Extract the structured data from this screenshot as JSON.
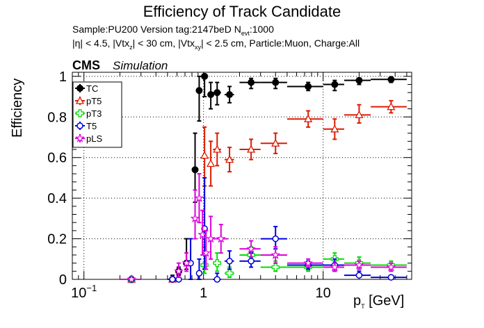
{
  "header": {
    "title": "Efficiency of Track Candidate",
    "sample_line_a": "Sample:PU200   Version tag:2147beD  N",
    "sample_line_a_sub": "evt",
    "sample_line_a_tail": ":1000",
    "cuts_a": "|η| < 4.5, |Vtx",
    "cuts_sub1": "z",
    "cuts_b": "| < 30 cm, |Vtx",
    "cuts_sub2": "xy",
    "cuts_c": "| < 2.5 cm, Particle:Muon, Charge:All",
    "cms": "CMS",
    "simulation": "Simulation"
  },
  "chart_data": {
    "type": "scatter",
    "title": "Efficiency of Track Candidate",
    "xlabel_main": "p",
    "xlabel_sub": "T",
    "xlabel_unit": " [GeV]",
    "ylabel": "Efficiency",
    "x_scale": "log",
    "xlim": [
      0.08,
      55
    ],
    "ylim": [
      0,
      1.02
    ],
    "x_tick_labels": [
      {
        "value": 0.1,
        "base": "10",
        "exp": "−1"
      },
      {
        "value": 1,
        "base": "1",
        "exp": ""
      },
      {
        "value": 10,
        "base": "10",
        "exp": ""
      }
    ],
    "y_ticks": [
      0,
      0.2,
      0.4,
      0.6,
      0.8,
      1
    ],
    "y_tick_labels": [
      "0",
      "0.2",
      "0.4",
      "0.6",
      "0.8",
      "1"
    ],
    "grid": true,
    "legend_position": "top-left",
    "series": [
      {
        "name": "TC",
        "color": "#000000",
        "marker": "filled-circle",
        "points": [
          {
            "x": 0.25,
            "xlo": 0.2,
            "xhi": 0.3,
            "y": 0,
            "ylo": 0,
            "yhi": 0
          },
          {
            "x": 0.55,
            "xlo": 0.5,
            "xhi": 0.6,
            "y": 0,
            "ylo": 0,
            "yhi": 0.02
          },
          {
            "x": 0.62,
            "xlo": 0.6,
            "xhi": 0.65,
            "y": 0.04,
            "ylo": 0.02,
            "yhi": 0.06
          },
          {
            "x": 0.72,
            "xlo": 0.7,
            "xhi": 0.75,
            "y": 0.08,
            "ylo": 0.05,
            "yhi": 0.2
          },
          {
            "x": 0.85,
            "xlo": 0.82,
            "xhi": 0.88,
            "y": 0.54,
            "ylo": 0.38,
            "yhi": 0.72
          },
          {
            "x": 0.92,
            "xlo": 0.9,
            "xhi": 0.95,
            "y": 0.93,
            "ylo": 0.78,
            "yhi": 1.0
          },
          {
            "x": 1.02,
            "xlo": 1.0,
            "xhi": 1.05,
            "y": 1.0,
            "ylo": 0.9,
            "yhi": 1.0
          },
          {
            "x": 1.15,
            "xlo": 1.1,
            "xhi": 1.2,
            "y": 0.91,
            "ylo": 0.84,
            "yhi": 0.97
          },
          {
            "x": 1.3,
            "xlo": 1.2,
            "xhi": 1.4,
            "y": 0.92,
            "ylo": 0.86,
            "yhi": 0.97
          },
          {
            "x": 1.65,
            "xlo": 1.5,
            "xhi": 1.8,
            "y": 0.91,
            "ylo": 0.87,
            "yhi": 0.95
          },
          {
            "x": 2.5,
            "xlo": 2.0,
            "xhi": 3.0,
            "y": 0.97,
            "ylo": 0.94,
            "yhi": 0.99
          },
          {
            "x": 4.0,
            "xlo": 3.0,
            "xhi": 5.0,
            "y": 0.97,
            "ylo": 0.94,
            "yhi": 0.99
          },
          {
            "x": 7.5,
            "xlo": 5.0,
            "xhi": 10.0,
            "y": 0.95,
            "ylo": 0.93,
            "yhi": 0.97
          },
          {
            "x": 12.5,
            "xlo": 10.0,
            "xhi": 15.0,
            "y": 0.96,
            "ylo": 0.93,
            "yhi": 0.98
          },
          {
            "x": 20.0,
            "xlo": 15.0,
            "xhi": 25.0,
            "y": 0.98,
            "ylo": 0.96,
            "yhi": 0.99
          },
          {
            "x": 37.0,
            "xlo": 25.0,
            "xhi": 50.0,
            "y": 0.985,
            "ylo": 0.97,
            "yhi": 0.995
          }
        ]
      },
      {
        "name": "pT5",
        "color": "#dd1a00",
        "marker": "open-triangle",
        "points": [
          {
            "x": 0.25,
            "xlo": 0.2,
            "xhi": 0.3,
            "y": 0,
            "ylo": 0,
            "yhi": 0
          },
          {
            "x": 0.55,
            "xlo": 0.5,
            "xhi": 0.6,
            "y": 0,
            "ylo": 0,
            "yhi": 0
          },
          {
            "x": 1.02,
            "xlo": 1.0,
            "xhi": 1.05,
            "y": 0.61,
            "ylo": 0.46,
            "yhi": 0.75
          },
          {
            "x": 1.15,
            "xlo": 1.1,
            "xhi": 1.2,
            "y": 0.57,
            "ylo": 0.46,
            "yhi": 0.68
          },
          {
            "x": 1.3,
            "xlo": 1.2,
            "xhi": 1.4,
            "y": 0.64,
            "ylo": 0.56,
            "yhi": 0.72
          },
          {
            "x": 1.65,
            "xlo": 1.5,
            "xhi": 1.8,
            "y": 0.59,
            "ylo": 0.53,
            "yhi": 0.65
          },
          {
            "x": 2.5,
            "xlo": 2.0,
            "xhi": 3.0,
            "y": 0.64,
            "ylo": 0.59,
            "yhi": 0.69
          },
          {
            "x": 4.0,
            "xlo": 3.0,
            "xhi": 5.0,
            "y": 0.67,
            "ylo": 0.62,
            "yhi": 0.72
          },
          {
            "x": 7.5,
            "xlo": 5.0,
            "xhi": 10.0,
            "y": 0.79,
            "ylo": 0.75,
            "yhi": 0.83
          },
          {
            "x": 12.5,
            "xlo": 10.0,
            "xhi": 15.0,
            "y": 0.74,
            "ylo": 0.69,
            "yhi": 0.79
          },
          {
            "x": 20.0,
            "xlo": 15.0,
            "xhi": 25.0,
            "y": 0.81,
            "ylo": 0.77,
            "yhi": 0.86
          },
          {
            "x": 37.0,
            "xlo": 25.0,
            "xhi": 50.0,
            "y": 0.85,
            "ylo": 0.82,
            "yhi": 0.88
          }
        ]
      },
      {
        "name": "pT3",
        "color": "#00dd00",
        "marker": "open-cross",
        "points": [
          {
            "x": 0.25,
            "xlo": 0.2,
            "xhi": 0.3,
            "y": 0,
            "ylo": 0,
            "yhi": 0
          },
          {
            "x": 1.02,
            "xlo": 1.0,
            "xhi": 1.05,
            "y": 0.07,
            "ylo": 0.03,
            "yhi": 0.16
          },
          {
            "x": 1.3,
            "xlo": 1.2,
            "xhi": 1.4,
            "y": 0.08,
            "ylo": 0.04,
            "yhi": 0.13
          },
          {
            "x": 1.65,
            "xlo": 1.5,
            "xhi": 1.8,
            "y": 0.03,
            "ylo": 0.01,
            "yhi": 0.06
          },
          {
            "x": 2.5,
            "xlo": 2.0,
            "xhi": 3.0,
            "y": 0.12,
            "ylo": 0.08,
            "yhi": 0.16
          },
          {
            "x": 4.0,
            "xlo": 3.0,
            "xhi": 5.0,
            "y": 0.06,
            "ylo": 0.04,
            "yhi": 0.09
          },
          {
            "x": 7.5,
            "xlo": 5.0,
            "xhi": 10.0,
            "y": 0.06,
            "ylo": 0.04,
            "yhi": 0.08
          },
          {
            "x": 12.5,
            "xlo": 10.0,
            "xhi": 15.0,
            "y": 0.1,
            "ylo": 0.07,
            "yhi": 0.13
          },
          {
            "x": 20.0,
            "xlo": 15.0,
            "xhi": 25.0,
            "y": 0.08,
            "ylo": 0.05,
            "yhi": 0.11
          },
          {
            "x": 37.0,
            "xlo": 25.0,
            "xhi": 50.0,
            "y": 0.07,
            "ylo": 0.05,
            "yhi": 0.09
          }
        ]
      },
      {
        "name": "T5",
        "color": "#0000dd",
        "marker": "open-circle",
        "points": [
          {
            "x": 0.25,
            "xlo": 0.2,
            "xhi": 0.3,
            "y": 0,
            "ylo": 0,
            "yhi": 0
          },
          {
            "x": 0.55,
            "xlo": 0.5,
            "xhi": 0.6,
            "y": 0,
            "ylo": 0,
            "yhi": 0
          },
          {
            "x": 0.62,
            "xlo": 0.6,
            "xhi": 0.65,
            "y": 0,
            "ylo": 0,
            "yhi": 0.03
          },
          {
            "x": 0.78,
            "xlo": 0.75,
            "xhi": 0.8,
            "y": 0.08,
            "ylo": 0.0,
            "yhi": 0.2
          },
          {
            "x": 0.92,
            "xlo": 0.9,
            "xhi": 0.95,
            "y": 0.03,
            "ylo": 0.0,
            "yhi": 0.1
          },
          {
            "x": 1.02,
            "xlo": 1.0,
            "xhi": 1.05,
            "y": 0.25,
            "ylo": 0.05,
            "yhi": 0.5
          },
          {
            "x": 1.3,
            "xlo": 1.2,
            "xhi": 1.4,
            "y": 0,
            "ylo": 0,
            "yhi": 0.03
          },
          {
            "x": 1.65,
            "xlo": 1.5,
            "xhi": 1.8,
            "y": 0.09,
            "ylo": 0.05,
            "yhi": 0.14
          },
          {
            "x": 2.5,
            "xlo": 2.0,
            "xhi": 3.0,
            "y": 0.09,
            "ylo": 0.06,
            "yhi": 0.13
          },
          {
            "x": 4.0,
            "xlo": 3.0,
            "xhi": 5.0,
            "y": 0.2,
            "ylo": 0.15,
            "yhi": 0.26
          },
          {
            "x": 7.5,
            "xlo": 5.0,
            "xhi": 10.0,
            "y": 0.07,
            "ylo": 0.05,
            "yhi": 0.09
          },
          {
            "x": 12.5,
            "xlo": 10.0,
            "xhi": 15.0,
            "y": 0.07,
            "ylo": 0.04,
            "yhi": 0.1
          },
          {
            "x": 20.0,
            "xlo": 15.0,
            "xhi": 25.0,
            "y": 0.02,
            "ylo": 0.01,
            "yhi": 0.04
          },
          {
            "x": 37.0,
            "xlo": 25.0,
            "xhi": 50.0,
            "y": 0.01,
            "ylo": 0.0,
            "yhi": 0.02
          }
        ]
      },
      {
        "name": "pLS",
        "color": "#dd00dd",
        "marker": "open-star",
        "points": [
          {
            "x": 0.25,
            "xlo": 0.2,
            "xhi": 0.3,
            "y": 0,
            "ylo": 0,
            "yhi": 0
          },
          {
            "x": 0.62,
            "xlo": 0.6,
            "xhi": 0.65,
            "y": 0.04,
            "ylo": 0.01,
            "yhi": 0.08
          },
          {
            "x": 0.72,
            "xlo": 0.7,
            "xhi": 0.75,
            "y": 0.08,
            "ylo": 0.04,
            "yhi": 0.13
          },
          {
            "x": 0.85,
            "xlo": 0.82,
            "xhi": 0.88,
            "y": 0.3,
            "ylo": 0.2,
            "yhi": 0.44
          },
          {
            "x": 0.92,
            "xlo": 0.9,
            "xhi": 0.95,
            "y": 0.4,
            "ylo": 0.28,
            "yhi": 0.52
          },
          {
            "x": 0.98,
            "xlo": 0.96,
            "xhi": 1.0,
            "y": 0.22,
            "ylo": 0.12,
            "yhi": 0.34
          },
          {
            "x": 1.05,
            "xlo": 1.02,
            "xhi": 1.08,
            "y": 0.13,
            "ylo": 0.05,
            "yhi": 0.24
          },
          {
            "x": 1.15,
            "xlo": 1.1,
            "xhi": 1.2,
            "y": 0.2,
            "ylo": 0.1,
            "yhi": 0.31
          },
          {
            "x": 1.4,
            "xlo": 1.2,
            "xhi": 1.6,
            "y": 0.2,
            "ylo": 0.13,
            "yhi": 0.27
          },
          {
            "x": 2.5,
            "xlo": 2.0,
            "xhi": 3.0,
            "y": 0.15,
            "ylo": 0.11,
            "yhi": 0.19
          },
          {
            "x": 4.0,
            "xlo": 3.0,
            "xhi": 5.0,
            "y": 0.12,
            "ylo": 0.08,
            "yhi": 0.16
          },
          {
            "x": 7.5,
            "xlo": 5.0,
            "xhi": 10.0,
            "y": 0.08,
            "ylo": 0.06,
            "yhi": 0.1
          },
          {
            "x": 12.5,
            "xlo": 10.0,
            "xhi": 15.0,
            "y": 0.06,
            "ylo": 0.04,
            "yhi": 0.08
          },
          {
            "x": 20.0,
            "xlo": 15.0,
            "xhi": 25.0,
            "y": 0.07,
            "ylo": 0.05,
            "yhi": 0.09
          },
          {
            "x": 37.0,
            "xlo": 25.0,
            "xhi": 50.0,
            "y": 0.06,
            "ylo": 0.04,
            "yhi": 0.08
          }
        ]
      }
    ]
  }
}
